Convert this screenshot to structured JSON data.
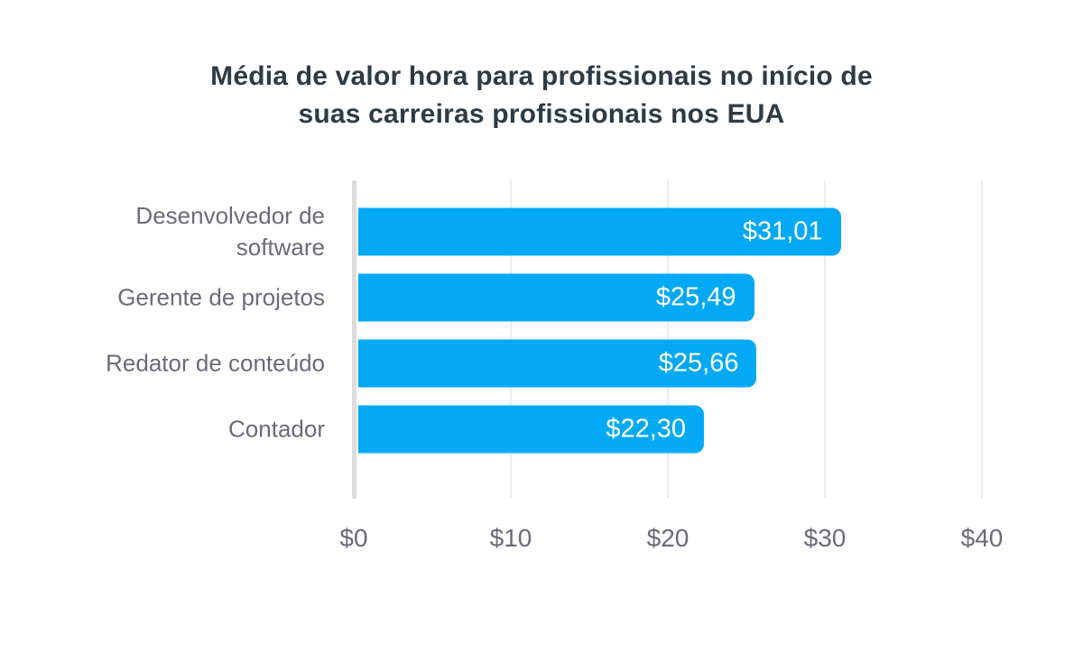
{
  "chart_data": {
    "type": "bar",
    "orientation": "horizontal",
    "title": "Média de valor hora para profissionais no início de suas carreiras profissionais nos EUA",
    "title_lines": [
      "Média de valor hora para profissionais no início de",
      "suas carreiras profissionais nos EUA"
    ],
    "categories": [
      "Desenvolvedor de software",
      "Gerente de projetos",
      "Redator de conteúdo",
      "Contador"
    ],
    "category_label_lines": [
      [
        "Desenvolvedor de",
        "software"
      ],
      [
        "Gerente de projetos"
      ],
      [
        "Redator de conteúdo"
      ],
      [
        "Contador"
      ]
    ],
    "values": [
      31.01,
      25.49,
      25.66,
      22.3
    ],
    "value_labels": [
      "$31,01",
      "$25,49",
      "$25,66",
      "$22,30"
    ],
    "xlabel": "",
    "ylabel": "",
    "x_axis": {
      "min": 0,
      "max": 40,
      "ticks": [
        "$0",
        "$10",
        "$20",
        "$30",
        "$40"
      ],
      "tick_values": [
        0,
        10,
        20,
        30,
        40
      ]
    },
    "grid": "vertical-only",
    "legend": "none",
    "colors": {
      "background": "#ffffff",
      "bar": "#03a9f4",
      "bar_value_label": "#ffffff",
      "title": "#2e3b44",
      "category_label": "#6c6a78",
      "tick_label": "#6c6a78",
      "axis_line": "#dcdcdc",
      "grid_line": "#ececec"
    }
  }
}
